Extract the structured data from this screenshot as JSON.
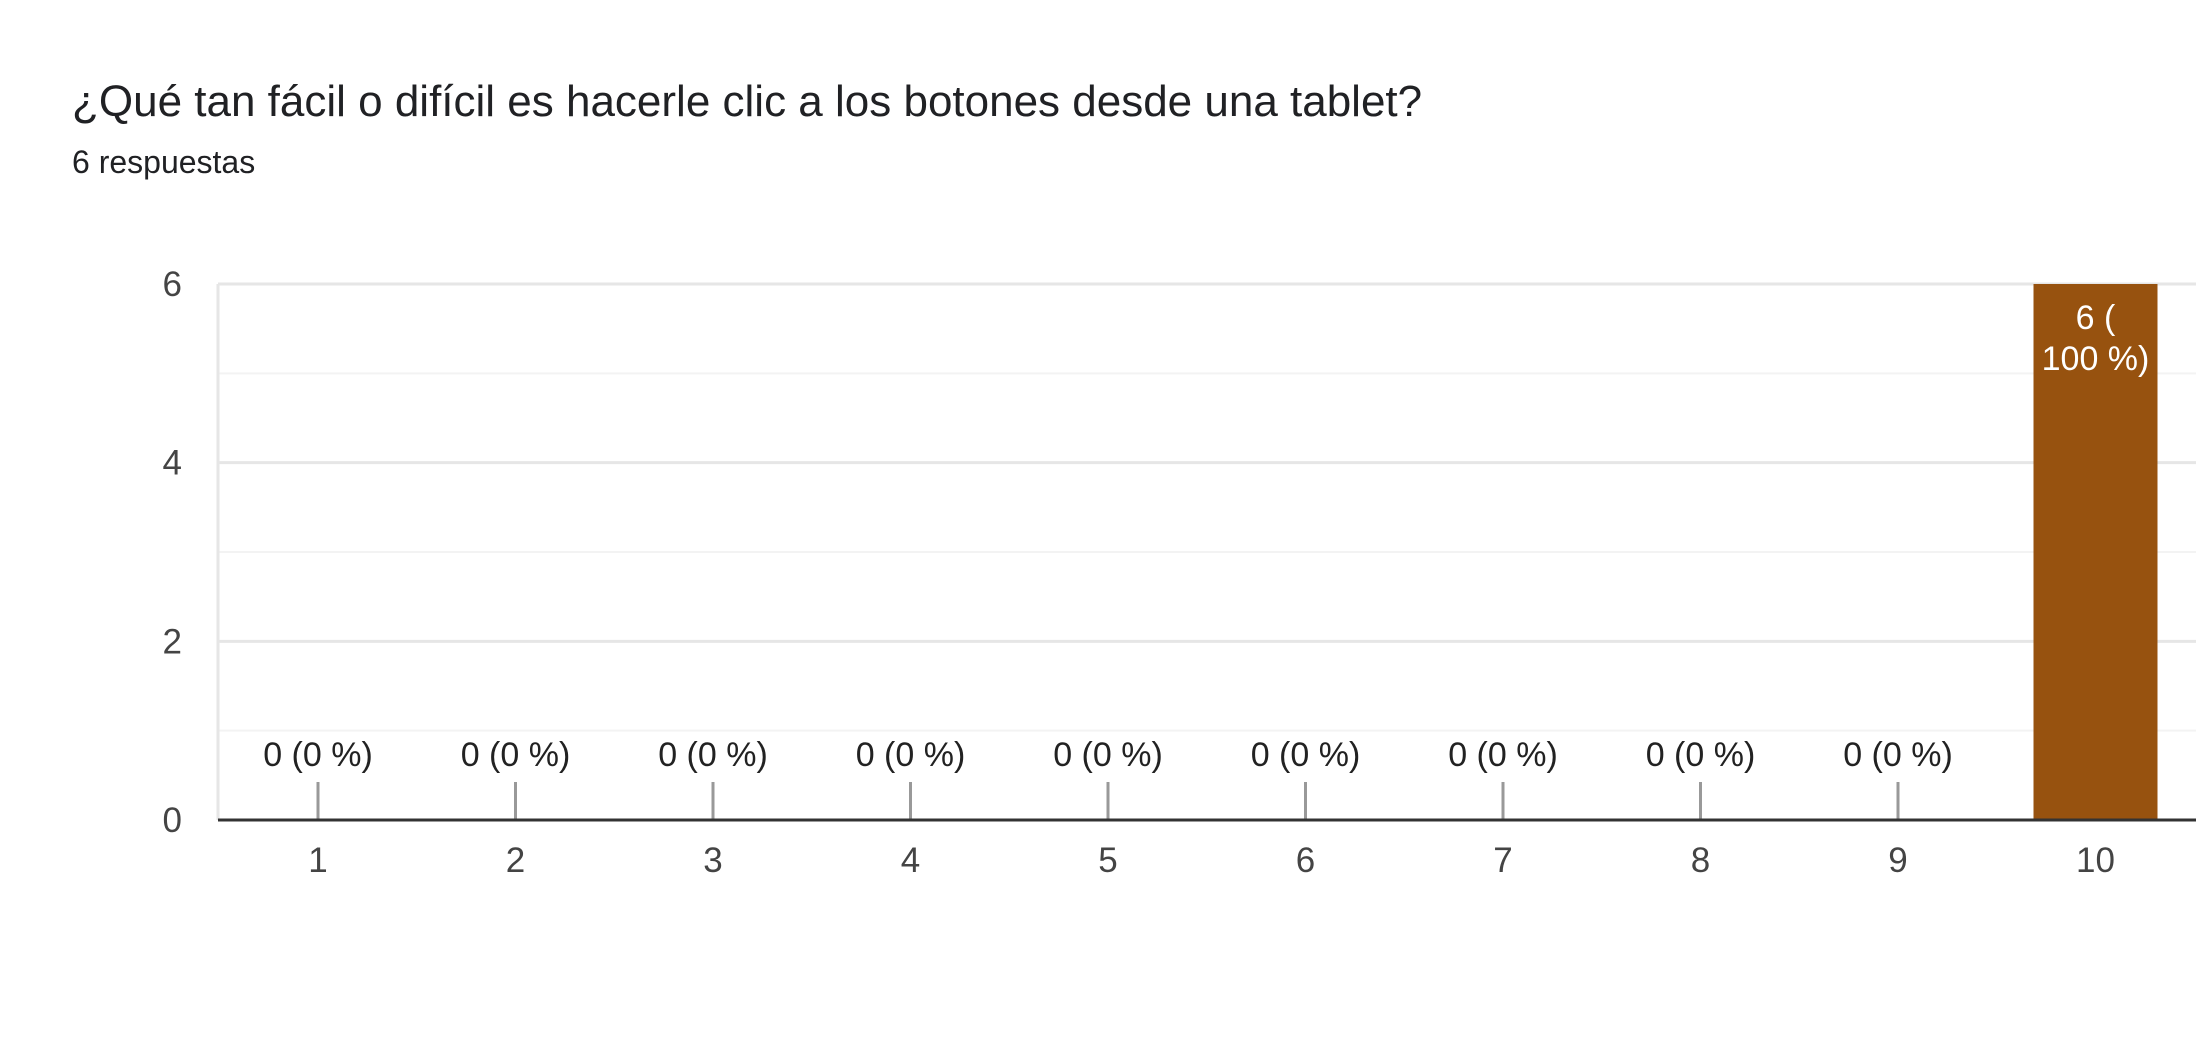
{
  "question": {
    "title": "¿Qué tan fácil o difícil es hacerle clic a los botones desde una tablet?",
    "responses_label": "6 respuestas"
  },
  "colors": {
    "bar": "#97520F",
    "grid_major": "#e6e6e6",
    "grid_minor": "#f3f3f3",
    "baseline": "#333333",
    "zero_marker": "#999999"
  },
  "chart_data": {
    "type": "bar",
    "categories": [
      "1",
      "2",
      "3",
      "4",
      "5",
      "6",
      "7",
      "8",
      "9",
      "10"
    ],
    "values": [
      0,
      0,
      0,
      0,
      0,
      0,
      0,
      0,
      0,
      6
    ],
    "data_labels": [
      "0 (0 %)",
      "0 (0 %)",
      "0 (0 %)",
      "0 (0 %)",
      "0 (0 %)",
      "0 (0 %)",
      "0 (0 %)",
      "0 (0 %)",
      "0 (0 %)",
      "6 (\n100 %)"
    ],
    "yticks": [
      0,
      2,
      4,
      6
    ],
    "ylim": [
      0,
      6
    ],
    "grid": true,
    "title": "",
    "xlabel": "",
    "ylabel": ""
  }
}
